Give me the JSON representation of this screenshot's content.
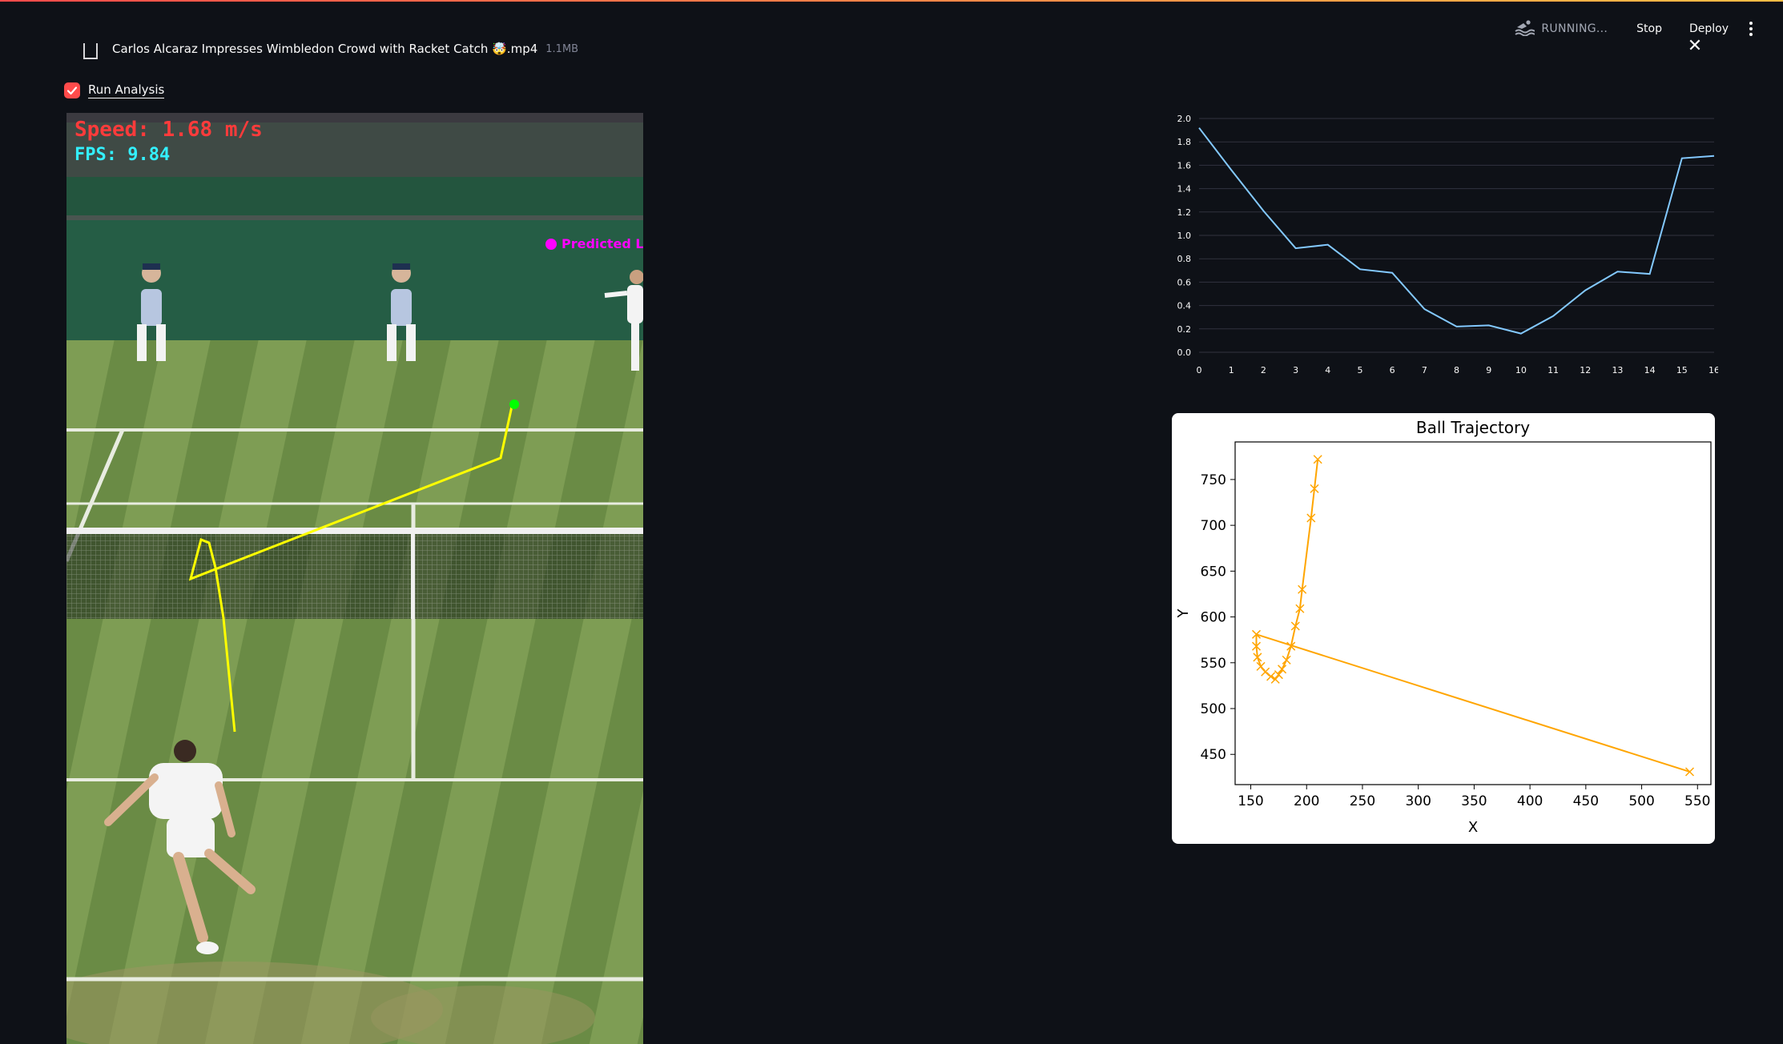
{
  "header": {
    "status_text": "RUNNING...",
    "stop_label": "Stop",
    "deploy_label": "Deploy",
    "icons": {
      "status": "swimmer-icon",
      "menu": "kebab-menu-icon"
    }
  },
  "uploaded_file": {
    "name": "Carlos Alcaraz Impresses Wimbledon Crowd with Racket Catch 🤯.mp4",
    "size": "1.1MB"
  },
  "run_analysis": {
    "label": "Run Analysis",
    "checked": true
  },
  "video_overlay": {
    "speed_text": "Speed: 1.68 m/s",
    "fps_text": "FPS: 9.84",
    "predicted_label": "Predicted Lar"
  },
  "colors": {
    "background": "#0e1117",
    "accent": "#ff4b4b",
    "speed_line": "#83c9ff",
    "trajectory_line": "#ffa500",
    "path_overlay": "#ffff00"
  },
  "chart_data": [
    {
      "type": "line",
      "x": [
        0,
        1,
        2,
        3,
        4,
        5,
        6,
        7,
        8,
        9,
        10,
        11,
        12,
        13,
        14,
        15,
        16
      ],
      "y": [
        1.92,
        1.56,
        1.21,
        0.89,
        0.92,
        0.71,
        0.68,
        0.37,
        0.22,
        0.23,
        0.16,
        0.31,
        0.53,
        0.69,
        0.67,
        1.66,
        1.68
      ],
      "xticks": [
        "0",
        "1",
        "2",
        "3",
        "4",
        "5",
        "6",
        "7",
        "8",
        "9",
        "10",
        "11",
        "12",
        "13",
        "14",
        "15",
        "16"
      ],
      "yticks": [
        "0.0",
        "0.2",
        "0.4",
        "0.6",
        "0.8",
        "1.0",
        "1.2",
        "1.4",
        "1.6",
        "1.8",
        "2.0"
      ],
      "xlim": [
        0,
        16
      ],
      "ylim": [
        0,
        2
      ],
      "grid": true,
      "title": "",
      "xlabel": "",
      "ylabel": ""
    },
    {
      "type": "line",
      "title": "Ball Trajectory",
      "xlabel": "X",
      "ylabel": "Y",
      "marker": "x",
      "x": [
        210,
        207,
        204,
        196,
        194,
        190,
        186,
        182,
        178,
        175,
        172,
        168,
        163,
        159,
        156,
        155,
        155,
        543
      ],
      "y": [
        772,
        740,
        708,
        630,
        609,
        590,
        568,
        553,
        543,
        537,
        532,
        535,
        540,
        546,
        556,
        568,
        581,
        431
      ],
      "xticks": [
        "150",
        "200",
        "250",
        "300",
        "350",
        "400",
        "450",
        "500",
        "550"
      ],
      "yticks": [
        "450",
        "500",
        "550",
        "600",
        "650",
        "700",
        "750"
      ],
      "xlim": [
        136,
        562
      ],
      "ylim": [
        417,
        791
      ]
    }
  ]
}
